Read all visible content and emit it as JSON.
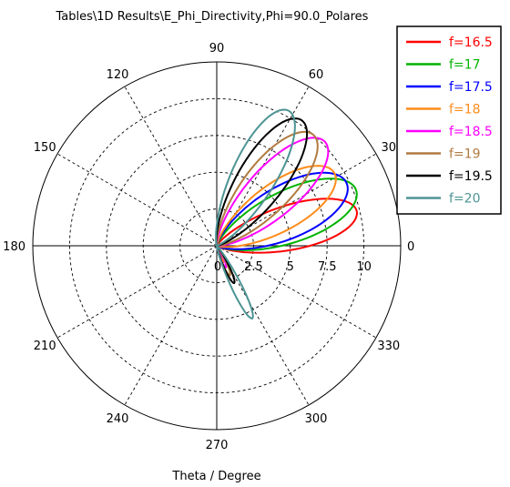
{
  "chart_data": {
    "type": "polar",
    "title": "Tables\\1D Results\\E_Phi_Directivity,Phi=90.0_Polares",
    "xlabel": "Theta / Degree",
    "angle_ticks": [
      "0",
      "30",
      "60",
      "90",
      "120",
      "150",
      "180",
      "210",
      "240",
      "270",
      "300",
      "330"
    ],
    "radial_ticks": [
      "0",
      "2.5",
      "5",
      "7.5",
      "10"
    ],
    "rlim": [
      0,
      12.5
    ],
    "grid": true,
    "legend_position": "top-right",
    "series": [
      {
        "name": "f=16.5",
        "color": "#ff0000",
        "peak_angle": 14,
        "peak_value": 9.8,
        "beamwidth": 15,
        "back_angle": -70,
        "back_value": 0.6
      },
      {
        "name": "f=17",
        "color": "#00b400",
        "peak_angle": 22,
        "peak_value": 10.2,
        "beamwidth": 17,
        "back_angle": -70,
        "back_value": 0.8
      },
      {
        "name": "f=17.5",
        "color": "#0000ff",
        "peak_angle": 26,
        "peak_value": 9.8,
        "beamwidth": 18,
        "back_angle": -70,
        "back_value": 1.0
      },
      {
        "name": "f=18",
        "color": "#ff8c1a",
        "peak_angle": 32,
        "peak_value": 9.4,
        "beamwidth": 17,
        "back_angle": -68,
        "back_value": 1.2
      },
      {
        "name": "f=18.5",
        "color": "#ff00ff",
        "peak_angle": 44,
        "peak_value": 10.2,
        "beamwidth": 16,
        "back_angle": -67,
        "back_value": 1.6
      },
      {
        "name": "f=19",
        "color": "#b07a40",
        "peak_angle": 49,
        "peak_value": 10.0,
        "beamwidth": 16,
        "back_angle": -66,
        "back_value": 2.2
      },
      {
        "name": "f=19.5",
        "color": "#000000",
        "peak_angle": 56,
        "peak_value": 10.3,
        "beamwidth": 15,
        "back_angle": -65,
        "back_value": 2.8
      },
      {
        "name": "f=20",
        "color": "#4d9494",
        "peak_angle": 62,
        "peak_value": 10.4,
        "beamwidth": 14,
        "back_angle": -64,
        "back_value": 5.5
      }
    ]
  }
}
